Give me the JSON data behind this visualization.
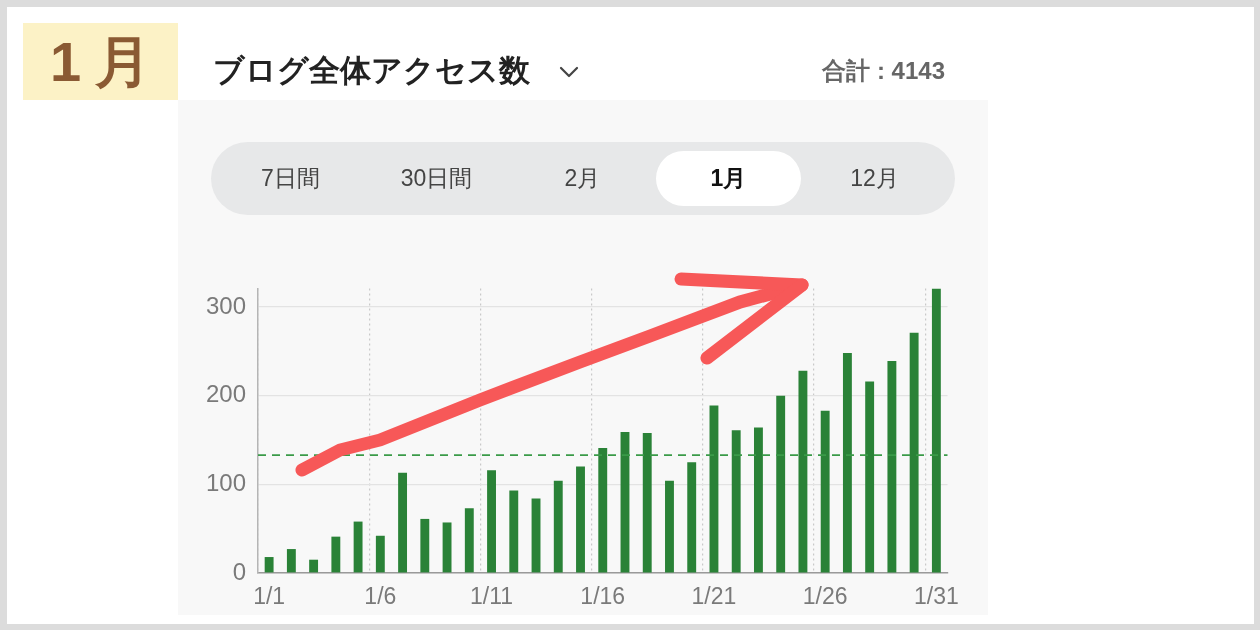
{
  "chart_data": {
    "type": "bar",
    "title": "ブログ全体アクセス数",
    "annotations": [
      "1月",
      "合計 : 4143",
      "7日間",
      "30日間",
      "2月",
      "1月",
      "12月"
    ],
    "categories": [
      "1/1",
      null,
      null,
      null,
      null,
      "1/6",
      null,
      null,
      null,
      null,
      "1/11",
      null,
      null,
      null,
      null,
      "1/16",
      null,
      null,
      null,
      null,
      "1/21",
      null,
      null,
      null,
      null,
      "1/26",
      null,
      null,
      null,
      null,
      "1/31"
    ],
    "values": [
      18,
      27,
      15,
      41,
      58,
      42,
      113,
      61,
      57,
      73,
      116,
      93,
      84,
      104,
      120,
      141,
      159,
      158,
      104,
      125,
      189,
      161,
      164,
      200,
      228,
      183,
      248,
      216,
      239,
      271,
      321
    ],
    "color": "#2a8237",
    "ylim": [
      0,
      321
    ],
    "yticks": [
      0,
      100,
      200,
      300
    ],
    "grid": true,
    "ref_lines": [
      {
        "axis": "y",
        "value": 133,
        "color": "#3a9a48",
        "line_style": "dashed"
      }
    ]
  }
}
